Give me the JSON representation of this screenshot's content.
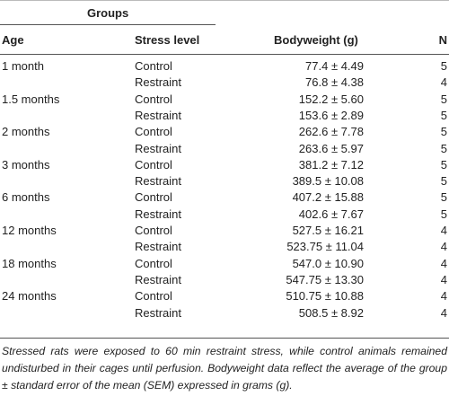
{
  "table": {
    "group_header": "Groups",
    "columns": [
      "Age",
      "Stress level",
      "Bodyweight (g)",
      "N"
    ],
    "groups": [
      {
        "age": "1 month",
        "rows": [
          {
            "stress": "Control",
            "weight": "77.4 ± 4.49",
            "n": 5
          },
          {
            "stress": "Restraint",
            "weight": "76.8 ± 4.38",
            "n": 4
          }
        ]
      },
      {
        "age": "1.5 months",
        "rows": [
          {
            "stress": "Control",
            "weight": "152.2 ± 5.60",
            "n": 5
          },
          {
            "stress": "Restraint",
            "weight": "153.6 ± 2.89",
            "n": 5
          }
        ]
      },
      {
        "age": "2 months",
        "rows": [
          {
            "stress": "Control",
            "weight": "262.6 ± 7.78",
            "n": 5
          },
          {
            "stress": "Restraint",
            "weight": "263.6 ± 5.97",
            "n": 5
          }
        ]
      },
      {
        "age": "3 months",
        "rows": [
          {
            "stress": "Control",
            "weight": "381.2 ± 7.12",
            "n": 5
          },
          {
            "stress": "Restraint",
            "weight": "389.5 ± 10.08",
            "n": 5
          }
        ]
      },
      {
        "age": "6 months",
        "rows": [
          {
            "stress": "Control",
            "weight": "407.2 ± 15.88",
            "n": 5
          },
          {
            "stress": "Restraint",
            "weight": "402.6 ± 7.67",
            "n": 5
          }
        ]
      },
      {
        "age": "12 months",
        "rows": [
          {
            "stress": "Control",
            "weight": "527.5 ± 16.21",
            "n": 4
          },
          {
            "stress": "Restraint",
            "weight": "523.75 ± 11.04",
            "n": 4
          }
        ]
      },
      {
        "age": "18 months",
        "rows": [
          {
            "stress": "Control",
            "weight": "547.0 ± 10.90",
            "n": 4
          },
          {
            "stress": "Restraint",
            "weight": "547.75 ± 13.30",
            "n": 4
          }
        ]
      },
      {
        "age": "24 months",
        "rows": [
          {
            "stress": "Control",
            "weight": "510.75 ± 10.88",
            "n": 4
          },
          {
            "stress": "Restraint",
            "weight": "508.5 ± 8.92",
            "n": 4
          }
        ]
      }
    ],
    "footnote": "Stressed rats were exposed to 60 min restraint stress, while control animals remained undisturbed in their cages until perfusion. Bodyweight data reflect the average of the group ± standard error of the mean (SEM) expressed in grams (g)."
  }
}
